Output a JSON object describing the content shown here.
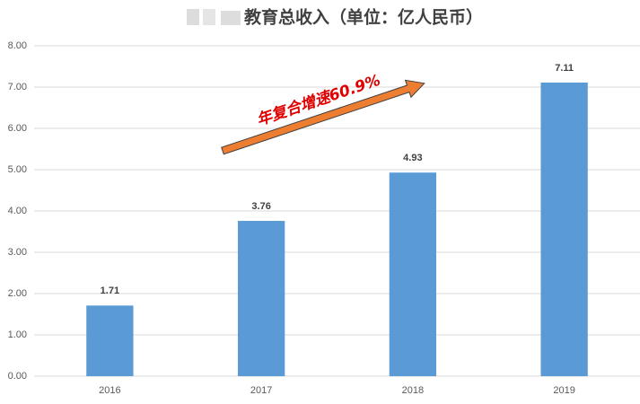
{
  "chart_data": {
    "type": "bar",
    "title": "教育总收入（单位：亿人民币）",
    "annotation": "年复合增速60.9%",
    "categories": [
      "2016",
      "2017",
      "2018",
      "2019"
    ],
    "values": [
      1.71,
      3.76,
      4.93,
      7.11
    ],
    "color": "#5b9bd5",
    "ylim": [
      0,
      8
    ],
    "yticks": [
      {
        "value": 0,
        "label": "0.00"
      },
      {
        "value": 1,
        "label": "1.00"
      },
      {
        "value": 2,
        "label": "2.00"
      },
      {
        "value": 3,
        "label": "3.00"
      },
      {
        "value": 4,
        "label": "4.00"
      },
      {
        "value": 5,
        "label": "5.00"
      },
      {
        "value": 6,
        "label": "6.00"
      },
      {
        "value": 7,
        "label": "7.00"
      },
      {
        "value": 8,
        "label": "8.00"
      }
    ],
    "grid": true
  }
}
